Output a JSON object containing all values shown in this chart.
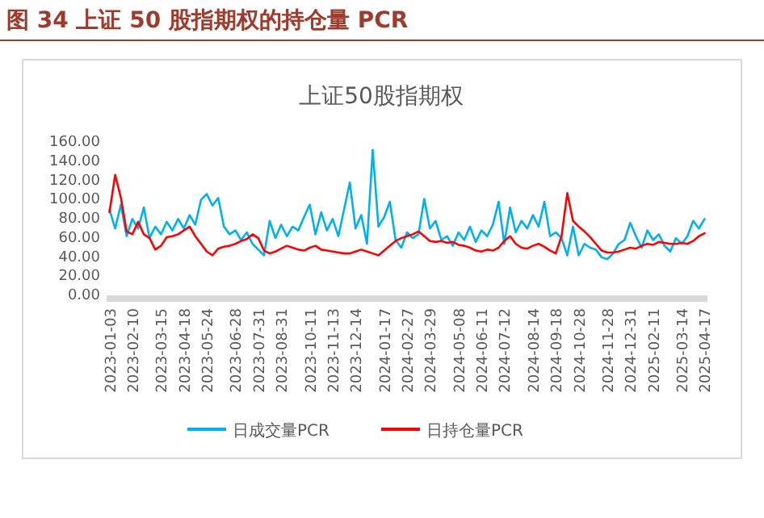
{
  "chart_data": {
    "type": "line",
    "title": "图 34 上证 50 股指期权的持仓量 PCR",
    "subtitle": "上证50股指期权",
    "categories": [
      "2023-01-03",
      null,
      null,
      null,
      "2023-02-10",
      null,
      null,
      null,
      null,
      "2023-03-15",
      null,
      null,
      null,
      "2023-04-18",
      null,
      null,
      null,
      "2023-05-24",
      null,
      null,
      null,
      null,
      "2023-06-28",
      null,
      null,
      null,
      "2023-07-31",
      null,
      null,
      null,
      "2023-08-31",
      null,
      null,
      null,
      null,
      "2023-10-11",
      null,
      null,
      null,
      "2023-11-13",
      null,
      null,
      null,
      "2023-12-14",
      null,
      null,
      null,
      null,
      "2024-01-17",
      null,
      null,
      null,
      "2024-02-27",
      null,
      null,
      null,
      "2024-03-29",
      null,
      null,
      null,
      null,
      "2024-05-08",
      null,
      null,
      null,
      "2024-06-11",
      null,
      null,
      null,
      "2024-07-12",
      null,
      null,
      null,
      null,
      "2024-08-14",
      null,
      null,
      null,
      "2024-09-18",
      null,
      null,
      null,
      "2024-10-28",
      null,
      null,
      null,
      null,
      "2024-11-28",
      null,
      null,
      null,
      "2024-12-31",
      null,
      null,
      null,
      "2025-02-11",
      null,
      null,
      null,
      null,
      "2025-03-14",
      null,
      null,
      null,
      "2025-04-17"
    ],
    "series": [
      {
        "name": "日成交量PCR",
        "color": "#00b0f0",
        "values": [
          88,
          68,
          93,
          60,
          78,
          68,
          90,
          58,
          70,
          62,
          75,
          66,
          78,
          68,
          82,
          72,
          98,
          104,
          92,
          100,
          70,
          62,
          66,
          56,
          64,
          52,
          46,
          40,
          76,
          58,
          72,
          60,
          70,
          66,
          80,
          93,
          62,
          85,
          66,
          78,
          60,
          88,
          116,
          68,
          82,
          52,
          150,
          70,
          80,
          96,
          56,
          48,
          64,
          58,
          62,
          99,
          68,
          76,
          56,
          60,
          50,
          64,
          56,
          70,
          54,
          66,
          60,
          72,
          96,
          52,
          90,
          64,
          76,
          68,
          82,
          70,
          96,
          60,
          64,
          58,
          40,
          70,
          40,
          52,
          48,
          46,
          38,
          36,
          42,
          52,
          56,
          74,
          60,
          48,
          66,
          56,
          62,
          50,
          44,
          58,
          52,
          60,
          76,
          68,
          78
        ]
      },
      {
        "name": "日持仓量PCR",
        "color": "#ff0000",
        "values": [
          85,
          124,
          100,
          65,
          62,
          75,
          62,
          58,
          46,
          50,
          59,
          60,
          62,
          66,
          70,
          60,
          52,
          44,
          40,
          47,
          49,
          50,
          52,
          55,
          57,
          62,
          58,
          45,
          42,
          44,
          47,
          50,
          48,
          46,
          45,
          48,
          50,
          46,
          45,
          44,
          43,
          42,
          42,
          44,
          46,
          44,
          42,
          40,
          45,
          50,
          55,
          58,
          60,
          62,
          65,
          60,
          55,
          54,
          55,
          53,
          54,
          51,
          50,
          48,
          45,
          44,
          46,
          45,
          48,
          55,
          60,
          52,
          48,
          47,
          50,
          52,
          49,
          45,
          42,
          60,
          105,
          76,
          70,
          65,
          59,
          52,
          45,
          43,
          43,
          44,
          46,
          48,
          47,
          50,
          52,
          51,
          54,
          53,
          52,
          52,
          53,
          52,
          55,
          60,
          63
        ]
      }
    ],
    "ylim": [
      0,
      160
    ],
    "yticks": [
      {
        "value": 0,
        "label": "0.00"
      },
      {
        "value": 20,
        "label": "20.00"
      },
      {
        "value": 40,
        "label": "40.00"
      },
      {
        "value": 60,
        "label": "60.00"
      },
      {
        "value": 80,
        "label": "80.00"
      },
      {
        "value": 100,
        "label": "100.00"
      },
      {
        "value": 120,
        "label": "120.00"
      },
      {
        "value": 140,
        "label": "140.00"
      },
      {
        "value": 160,
        "label": "160.00"
      }
    ],
    "legend": "bottom",
    "line_style": "solid",
    "marker": "none"
  }
}
